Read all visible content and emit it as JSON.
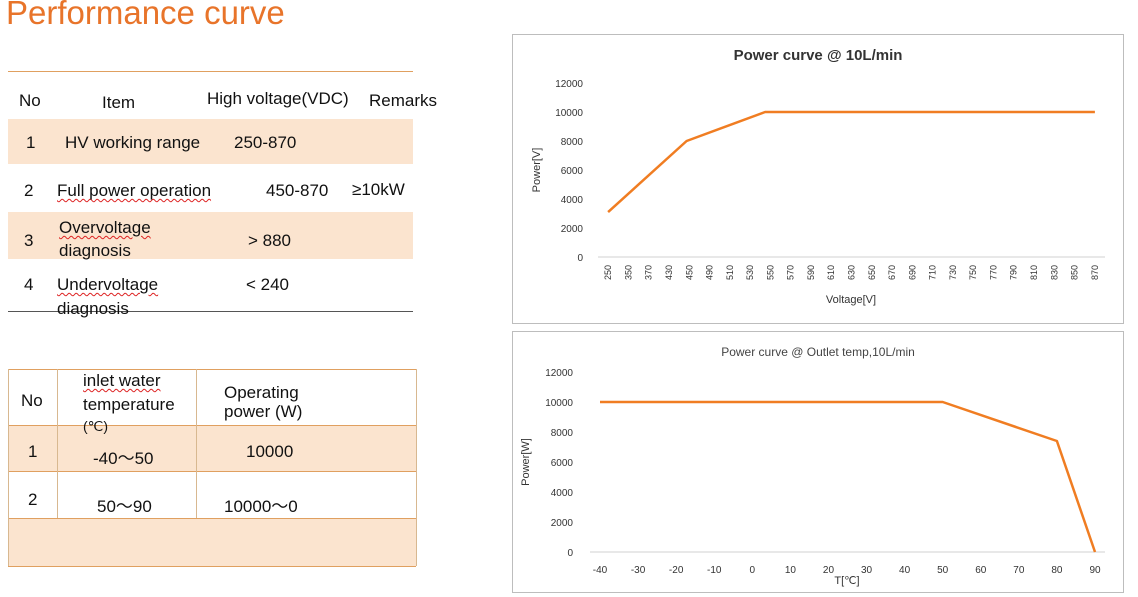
{
  "page": {
    "title": "Performance curve"
  },
  "table1": {
    "headers": [
      "No",
      "Item",
      "High voltage(VDC)",
      "Remarks"
    ],
    "rows": [
      {
        "no": "1",
        "item": "HV working range",
        "voltage": "250-870",
        "remarks": ""
      },
      {
        "no": "2",
        "item": "Full power operation",
        "voltage": "450-870",
        "remarks": "≥10kW"
      },
      {
        "no": "3",
        "item_l1": "Overvoltage",
        "item_l2": "diagnosis",
        "voltage": "> 880",
        "remarks": ""
      },
      {
        "no": "4",
        "item_l1": "Undervoltage",
        "item_l2": "diagnosis",
        "voltage": "< 240",
        "remarks": ""
      }
    ]
  },
  "table2": {
    "headers": {
      "no": "No",
      "temp_l1": "inlet water",
      "temp_l2": "temperature",
      "temp_l3": "(℃)",
      "power_l1": "Operating",
      "power_l2": "power (W)"
    },
    "rows": [
      {
        "no": "1",
        "temp": "-40～50",
        "power": "10000"
      },
      {
        "no": "2",
        "temp": "50～90",
        "power": "10000～0"
      }
    ]
  },
  "chart_data": [
    {
      "type": "line",
      "title": "Power curve @ 10L/min",
      "xlabel": "Voltage[V]",
      "ylabel": "Power[V]",
      "ylim": [
        0,
        12000
      ],
      "yticks": [
        0,
        2000,
        4000,
        6000,
        8000,
        10000,
        12000
      ],
      "categories": [
        "250",
        "350",
        "370",
        "430",
        "450",
        "490",
        "510",
        "530",
        "550",
        "570",
        "590",
        "610",
        "630",
        "650",
        "670",
        "690",
        "710",
        "730",
        "750",
        "770",
        "790",
        "810",
        "830",
        "850",
        "870"
      ],
      "x": [
        250,
        350,
        450,
        870
      ],
      "series": [
        {
          "values": [
            3100,
            8000,
            10000,
            10000
          ]
        }
      ],
      "grid": false,
      "color": "#f07d22"
    },
    {
      "type": "line",
      "title": "Power curve @ Outlet temp,10L/min",
      "xlabel": "T[℃]",
      "ylabel": "Power[W]",
      "xlim": [
        -40,
        90
      ],
      "ylim": [
        0,
        12000
      ],
      "yticks": [
        0,
        2000,
        4000,
        6000,
        8000,
        10000,
        12000
      ],
      "xticks": [
        -40,
        -30,
        -20,
        -10,
        0,
        10,
        20,
        30,
        40,
        50,
        60,
        70,
        80,
        90
      ],
      "x": [
        -40,
        50,
        80,
        90
      ],
      "series": [
        {
          "values": [
            10000,
            10000,
            7400,
            0
          ]
        }
      ],
      "grid": false,
      "color": "#f07d22"
    }
  ]
}
